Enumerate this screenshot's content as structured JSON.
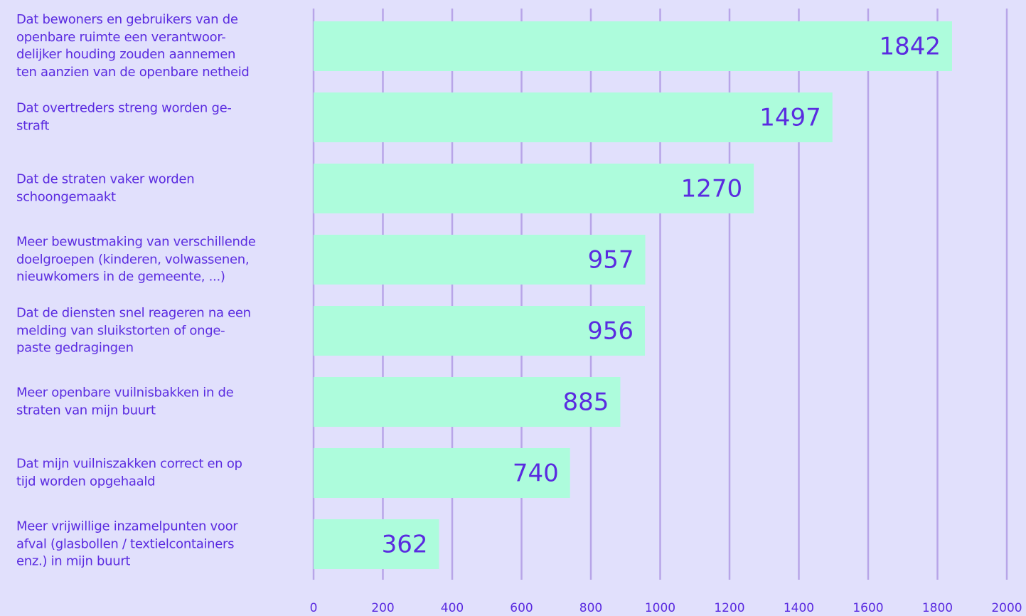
{
  "chart_data": {
    "type": "bar",
    "orientation": "horizontal",
    "categories": [
      "Dat bewoners en gebruikers van de\nopenbare ruimte een verantwoor-\ndelijker houding zouden aannemen\nten aanzien van de openbare netheid",
      "Dat overtreders streng worden ge-\nstraft",
      "Dat de straten vaker worden\nschoongemaakt",
      "Meer bewustmaking van verschillende\ndoelgroepen (kinderen, volwassenen,\nnieuwkomers in de gemeente, ...)",
      "Dat de diensten snel reageren na een\nmelding van sluikstorten of onge-\npaste gedragingen",
      "Meer openbare vuilnisbakken in de\nstraten van mijn buurt",
      "Dat mijn vuilniszakken correct en op\ntijd worden opgehaald",
      "Meer vrijwillige inzamelpunten voor\nafval (glasbollen / textielcontainers\nenz.) in mijn buurt"
    ],
    "values": [
      1842,
      1497,
      1270,
      957,
      956,
      885,
      740,
      362
    ],
    "color": "#adfcdc",
    "xlim": [
      0,
      2000
    ],
    "xticks": [
      0,
      200,
      400,
      600,
      800,
      1000,
      1200,
      1400,
      1600,
      1800,
      2000
    ],
    "grid": true
  }
}
